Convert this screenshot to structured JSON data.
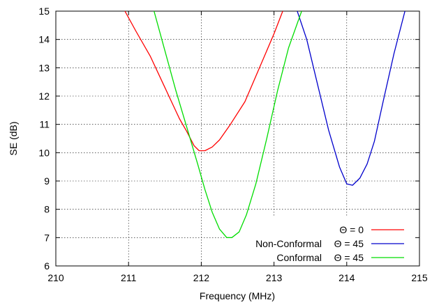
{
  "chart_data": {
    "type": "line",
    "title": "",
    "xlabel": "Frequency (MHz)",
    "ylabel": "SE (dB)",
    "xlim": [
      210,
      215
    ],
    "ylim": [
      6,
      15
    ],
    "xticks": [
      210,
      211,
      212,
      213,
      214,
      215
    ],
    "yticks": [
      6,
      7,
      8,
      9,
      10,
      11,
      12,
      13,
      14,
      15
    ],
    "xtick_labels": [
      "210",
      "211",
      "212",
      "213",
      "214",
      "215"
    ],
    "ytick_labels": [
      "6",
      "7",
      "8",
      "9",
      "10",
      "11",
      "12",
      "13",
      "14",
      "15"
    ],
    "grid": true,
    "grid_style": "dotted",
    "legend_position": "bottom-right",
    "series": [
      {
        "name": "Θ = 0",
        "legend_prefix": "",
        "legend_symbol": "Θ = 0",
        "color": "#ff0000",
        "points": [
          [
            210.95,
            15.0
          ],
          [
            211.1,
            14.3
          ],
          [
            211.3,
            13.4
          ],
          [
            211.5,
            12.3
          ],
          [
            211.7,
            11.2
          ],
          [
            211.8,
            10.75
          ],
          [
            211.9,
            10.25
          ],
          [
            211.97,
            10.07
          ],
          [
            212.05,
            10.07
          ],
          [
            212.15,
            10.2
          ],
          [
            212.25,
            10.45
          ],
          [
            212.4,
            11.0
          ],
          [
            212.6,
            11.8
          ],
          [
            212.8,
            13.0
          ],
          [
            213.0,
            14.2
          ],
          [
            213.12,
            15.0
          ]
        ]
      },
      {
        "name": "Non-Conformal  Θ = 45",
        "legend_prefix": "Non-Conformal",
        "legend_symbol": "Θ = 45",
        "color": "#0000cc",
        "points": [
          [
            213.32,
            15.0
          ],
          [
            213.45,
            14.0
          ],
          [
            213.6,
            12.4
          ],
          [
            213.75,
            10.8
          ],
          [
            213.9,
            9.5
          ],
          [
            214.0,
            8.9
          ],
          [
            214.08,
            8.85
          ],
          [
            214.18,
            9.1
          ],
          [
            214.28,
            9.6
          ],
          [
            214.38,
            10.4
          ],
          [
            214.5,
            11.8
          ],
          [
            214.65,
            13.5
          ],
          [
            214.8,
            15.0
          ]
        ]
      },
      {
        "name": "Conformal  Θ = 45",
        "legend_prefix": "Conformal",
        "legend_symbol": "Θ = 45",
        "color": "#00dd00",
        "points": [
          [
            211.35,
            15.0
          ],
          [
            211.5,
            13.6
          ],
          [
            211.65,
            12.2
          ],
          [
            211.8,
            10.9
          ],
          [
            211.95,
            9.6
          ],
          [
            212.05,
            8.7
          ],
          [
            212.15,
            7.9
          ],
          [
            212.25,
            7.3
          ],
          [
            212.35,
            7.0
          ],
          [
            212.42,
            7.0
          ],
          [
            212.52,
            7.2
          ],
          [
            212.62,
            7.8
          ],
          [
            212.75,
            8.9
          ],
          [
            212.9,
            10.5
          ],
          [
            213.05,
            12.2
          ],
          [
            213.2,
            13.7
          ],
          [
            213.38,
            15.0
          ]
        ]
      }
    ]
  }
}
